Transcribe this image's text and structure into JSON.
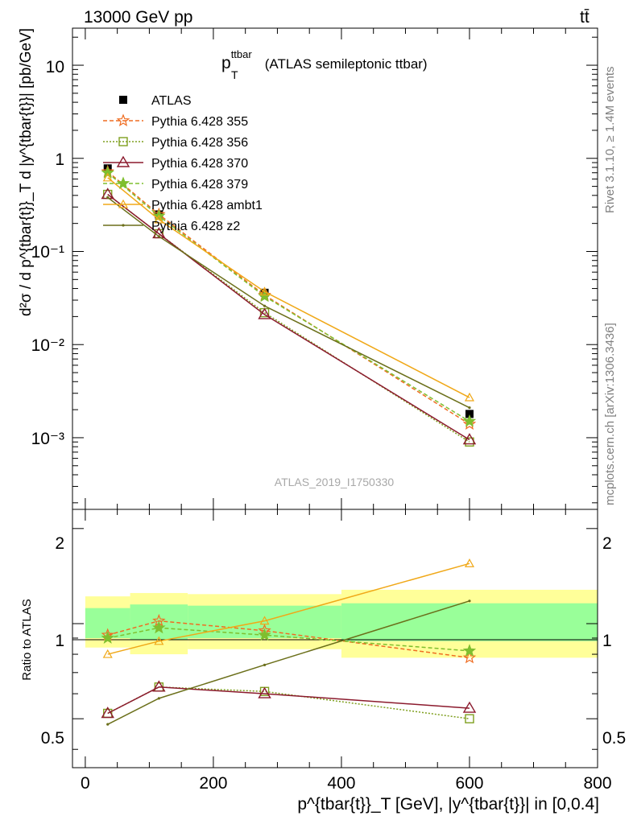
{
  "header": {
    "left": "13000 GeV pp",
    "right": "tt̄"
  },
  "side": {
    "rivet": "Rivet 3.1.10, ≥ 1.4M events",
    "mcplots": "mcplots.cern.ch [arXiv:1306.3436]"
  },
  "watermark": "ATLAS_2019_I1750330",
  "main_title": {
    "base": "p",
    "sub": "T",
    "sup": "ttbar",
    "rest": " (ATLAS semileptonic ttbar)"
  },
  "upper_ylabel": "d²σ / d p^{tbar{t}}_T d |y^{tbar{t}}| [pb/GeV]",
  "lower_ylabel": "Ratio to ATLAS",
  "xlabel": "p^{tbar{t}}_T [GeV], |y^{tbar{t}}| in [0,0.4]",
  "colors": {
    "data": "#000000",
    "p355": "#ef6d22",
    "p356": "#7f9f1f",
    "p370": "#8b1a2d",
    "p379": "#7fbf2f",
    "ambt1": "#f0a818",
    "z2": "#6b6f1a",
    "band_stat": "#99ff99",
    "band_tot": "#ffff99"
  },
  "chart_data": [
    {
      "type": "line",
      "title": "p_T^ttbar (ATLAS semileptonic ttbar)",
      "xlabel": "p^{tbar{t}}_T [GeV], |y^{tbar{t}}| in [0,0.4]",
      "ylabel": "d²σ / d p^{tbar{t}}_T d |y^{tbar{t}}| [pb/GeV]",
      "yscale": "log",
      "xlim": [
        -20,
        800
      ],
      "ylim": [
        0.00017,
        25
      ],
      "x_ticks": [
        0,
        200,
        400,
        600,
        800
      ],
      "y_tick_labels": [
        "10⁻³",
        "10⁻²",
        "10⁻¹",
        "1",
        "10"
      ],
      "legend": "top-left",
      "x": [
        35,
        115,
        280,
        600
      ],
      "series": [
        {
          "name": "ATLAS",
          "values": [
            0.78,
            0.25,
            0.036,
            0.0018
          ]
        },
        {
          "name": "Pythia 6.428 355",
          "values": [
            0.72,
            0.25,
            0.034,
            0.0014
          ]
        },
        {
          "name": "Pythia 6.428 356",
          "values": [
            0.41,
            0.155,
            0.022,
            0.0009
          ]
        },
        {
          "name": "Pythia 6.428 370",
          "values": [
            0.41,
            0.155,
            0.021,
            0.00095
          ]
        },
        {
          "name": "Pythia 6.428 379",
          "values": [
            0.7,
            0.24,
            0.033,
            0.0015
          ]
        },
        {
          "name": "Pythia 6.428 ambt1",
          "values": [
            0.62,
            0.22,
            0.037,
            0.0027
          ]
        },
        {
          "name": "Pythia 6.428 z2",
          "values": [
            0.38,
            0.145,
            0.026,
            0.0021
          ]
        }
      ]
    },
    {
      "type": "line",
      "ylabel": "Ratio to ATLAS",
      "xlabel": "p^{tbar{t}}_T [GeV], |y^{tbar{t}}| in [0,0.4]",
      "xlim": [
        -20,
        800
      ],
      "ylim": [
        0.35,
        2.3
      ],
      "y_ticks": [
        0.5,
        1,
        2
      ],
      "x": [
        35,
        115,
        280,
        600
      ],
      "bands": {
        "bins": [
          [
            0,
            70
          ],
          [
            70,
            160
          ],
          [
            160,
            400
          ],
          [
            400,
            800
          ]
        ],
        "stat": [
          [
            0.9,
            1.12
          ],
          [
            0.89,
            1.15
          ],
          [
            0.9,
            1.14
          ],
          [
            0.88,
            1.16
          ]
        ],
        "total": [
          [
            0.84,
            1.22
          ],
          [
            0.8,
            1.25
          ],
          [
            0.83,
            1.24
          ],
          [
            0.78,
            1.28
          ]
        ]
      },
      "series": [
        {
          "name": "Pythia 6.428 355",
          "values": [
            0.92,
            1.02,
            0.95,
            0.78
          ]
        },
        {
          "name": "Pythia 6.428 356",
          "values": [
            0.52,
            0.63,
            0.61,
            0.5
          ]
        },
        {
          "name": "Pythia 6.428 370",
          "values": [
            0.52,
            0.63,
            0.6,
            0.54
          ]
        },
        {
          "name": "Pythia 6.428 379",
          "values": [
            0.9,
            0.97,
            0.92,
            0.82
          ]
        },
        {
          "name": "Pythia 6.428 ambt1",
          "values": [
            0.8,
            0.88,
            1.02,
            1.55
          ]
        },
        {
          "name": "Pythia 6.428 z2",
          "values": [
            0.48,
            0.58,
            0.74,
            1.18
          ]
        }
      ]
    }
  ]
}
